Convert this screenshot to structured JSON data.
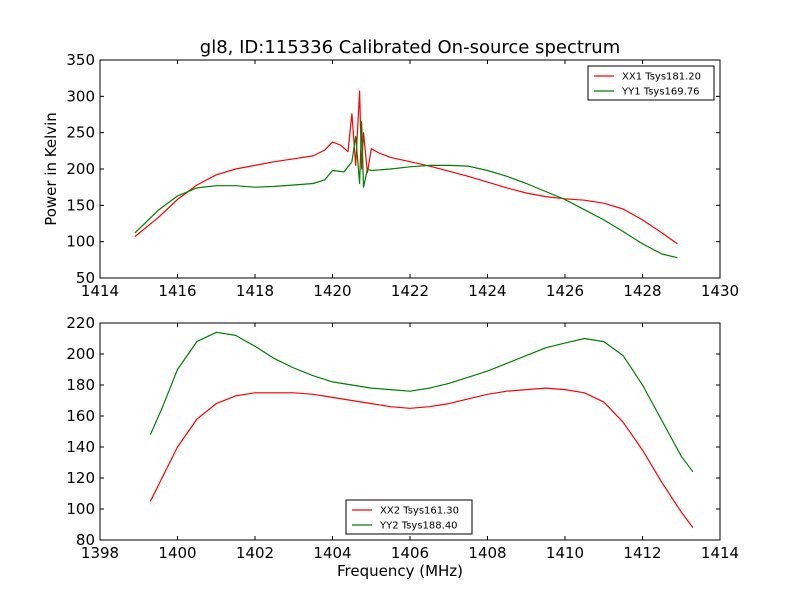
{
  "figure": {
    "title": "gl8, ID:115336 Calibrated On-source spectrum"
  },
  "colors": {
    "red": "#ff0000",
    "green": "#008000",
    "axis": "#000000"
  },
  "chart_data": [
    {
      "type": "line",
      "title": "gl8, ID:115336 Calibrated On-source spectrum",
      "xlabel": "",
      "ylabel": "Power in Kelvin",
      "xlim": [
        1414,
        1430
      ],
      "ylim": [
        50,
        350
      ],
      "xticks": [
        1414,
        1416,
        1418,
        1420,
        1422,
        1424,
        1426,
        1428,
        1430
      ],
      "yticks": [
        50,
        100,
        150,
        200,
        250,
        300,
        350
      ],
      "legend_position": "top-right",
      "grid": false,
      "series": [
        {
          "name": "XX1 Tsys181.20",
          "color": "#ff0000",
          "x": [
            1414.9,
            1415.5,
            1416.0,
            1416.5,
            1417.0,
            1417.5,
            1418.0,
            1418.5,
            1419.0,
            1419.5,
            1419.8,
            1420.0,
            1420.2,
            1420.4,
            1420.5,
            1420.6,
            1420.7,
            1420.75,
            1420.8,
            1420.9,
            1421.0,
            1421.2,
            1421.5,
            1422.0,
            1422.5,
            1423.0,
            1423.5,
            1424.0,
            1424.5,
            1425.0,
            1425.5,
            1426.0,
            1426.5,
            1427.0,
            1427.5,
            1428.0,
            1428.5,
            1428.9
          ],
          "y": [
            107,
            133,
            158,
            178,
            192,
            200,
            205,
            210,
            214,
            218,
            226,
            237,
            233,
            224,
            276,
            205,
            307,
            200,
            250,
            195,
            228,
            222,
            216,
            210,
            204,
            197,
            190,
            182,
            174,
            167,
            162,
            159,
            157,
            153,
            145,
            130,
            112,
            97
          ]
        },
        {
          "name": "YY1 Tsys169.76",
          "color": "#008000",
          "x": [
            1414.9,
            1415.5,
            1416.0,
            1416.5,
            1417.0,
            1417.5,
            1418.0,
            1418.5,
            1419.0,
            1419.5,
            1419.8,
            1420.0,
            1420.3,
            1420.5,
            1420.6,
            1420.7,
            1420.75,
            1420.8,
            1420.9,
            1421.0,
            1421.5,
            1422.0,
            1422.5,
            1423.0,
            1423.5,
            1424.0,
            1424.5,
            1425.0,
            1425.5,
            1426.0,
            1426.5,
            1427.0,
            1427.5,
            1428.0,
            1428.5,
            1428.9
          ],
          "y": [
            112,
            143,
            163,
            174,
            177,
            177,
            175,
            176,
            178,
            180,
            185,
            198,
            196,
            210,
            245,
            180,
            265,
            175,
            200,
            198,
            200,
            203,
            205,
            205,
            204,
            198,
            190,
            180,
            169,
            158,
            144,
            130,
            114,
            97,
            83,
            78
          ]
        }
      ]
    },
    {
      "type": "line",
      "title": "",
      "xlabel": "Frequency (MHz)",
      "ylabel": "",
      "xlim": [
        1398,
        1414
      ],
      "ylim": [
        80,
        220
      ],
      "xticks": [
        1398,
        1400,
        1402,
        1404,
        1406,
        1408,
        1410,
        1412,
        1414
      ],
      "yticks": [
        80,
        100,
        120,
        140,
        160,
        180,
        200,
        220
      ],
      "legend_position": "bottom-center",
      "grid": false,
      "series": [
        {
          "name": "XX2 Tsys161.30",
          "color": "#ff0000",
          "x": [
            1399.3,
            1399.6,
            1400.0,
            1400.5,
            1401.0,
            1401.5,
            1402.0,
            1402.5,
            1403.0,
            1403.5,
            1404.0,
            1404.5,
            1405.0,
            1405.5,
            1406.0,
            1406.5,
            1407.0,
            1407.5,
            1408.0,
            1408.5,
            1409.0,
            1409.5,
            1410.0,
            1410.5,
            1411.0,
            1411.5,
            1412.0,
            1412.5,
            1413.0,
            1413.3
          ],
          "y": [
            105,
            120,
            140,
            158,
            168,
            173,
            175,
            175,
            175,
            174,
            172,
            170,
            168,
            166,
            165,
            166,
            168,
            171,
            174,
            176,
            177,
            178,
            177,
            175,
            169,
            156,
            138,
            117,
            98,
            88
          ]
        },
        {
          "name": "YY2 Tsys188.40",
          "color": "#008000",
          "x": [
            1399.3,
            1399.6,
            1400.0,
            1400.5,
            1401.0,
            1401.5,
            1402.0,
            1402.5,
            1403.0,
            1403.5,
            1404.0,
            1404.5,
            1405.0,
            1405.5,
            1406.0,
            1406.5,
            1407.0,
            1407.5,
            1408.0,
            1408.5,
            1409.0,
            1409.5,
            1410.0,
            1410.5,
            1411.0,
            1411.5,
            1412.0,
            1412.5,
            1413.0,
            1413.3
          ],
          "y": [
            148,
            165,
            190,
            208,
            214,
            212,
            205,
            197,
            191,
            186,
            182,
            180,
            178,
            177,
            176,
            178,
            181,
            185,
            189,
            194,
            199,
            204,
            207,
            210,
            208,
            199,
            180,
            157,
            134,
            124
          ]
        }
      ]
    }
  ]
}
